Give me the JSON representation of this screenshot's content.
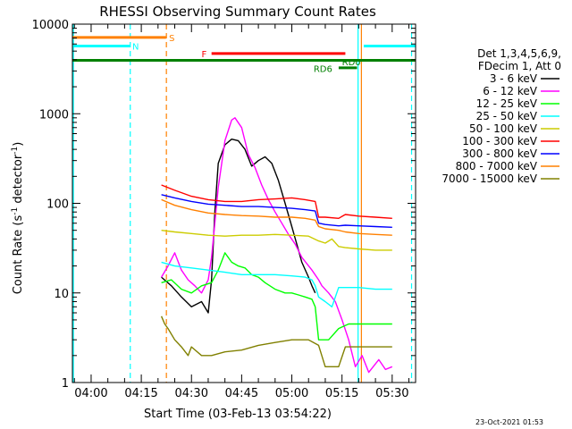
{
  "chart_data": {
    "type": "line",
    "title": "RHESSI Observing Summary Count Rates",
    "ylabel_main": "Count Rate (s",
    "ylabel_sup": "-1",
    "ylabel_mid": " detector",
    "ylabel_sup2": "-1",
    "ylabel_end": ")",
    "xlabel": "Start Time (03-Feb-13 03:54:22)",
    "footer_date": "23-Oct-2021 01:53",
    "y_scale": "log",
    "ylim": [
      1,
      10000
    ],
    "xlim_min": [
      -5.6,
      97
    ],
    "y_ticks": [
      {
        "value": 1,
        "label": "1"
      },
      {
        "value": 10,
        "label": "10"
      },
      {
        "value": 100,
        "label": "100"
      },
      {
        "value": 1000,
        "label": "1000"
      },
      {
        "value": 10000,
        "label": "10000"
      }
    ],
    "x_ticks": [
      {
        "value": 0,
        "label": "04:00"
      },
      {
        "value": 15,
        "label": "04:15"
      },
      {
        "value": 30,
        "label": "04:30"
      },
      {
        "value": 45,
        "label": "04:45"
      },
      {
        "value": 60,
        "label": "05:00"
      },
      {
        "value": 75,
        "label": "05:15"
      },
      {
        "value": 90,
        "label": "05:30"
      }
    ],
    "legend_header": [
      "Det 1,3,4,5,6,9,",
      "FDecim 1, Att 0"
    ],
    "series": [
      {
        "name": "3 - 6 keV",
        "color": "#000000",
        "x": [
          21,
          24,
          27,
          30,
          33,
          35,
          36,
          37,
          38,
          40,
          42,
          44,
          46,
          48,
          50,
          52,
          54,
          56,
          58,
          60,
          62,
          63,
          65,
          66,
          67
        ],
        "y": [
          15,
          12,
          9,
          7,
          8,
          6,
          14,
          80,
          280,
          450,
          520,
          500,
          400,
          260,
          300,
          330,
          280,
          180,
          100,
          55,
          30,
          22,
          15,
          12,
          10
        ]
      },
      {
        "name": "6 - 12 keV",
        "color": "#ff00ff",
        "x": [
          21,
          23,
          25,
          27,
          29,
          31,
          33,
          35,
          36,
          38,
          40,
          42,
          43,
          45,
          47,
          49,
          51,
          53,
          55,
          57,
          59,
          61,
          63,
          66,
          68,
          69,
          71,
          73,
          75,
          77,
          79,
          81,
          83,
          86,
          88,
          90
        ],
        "y": [
          15,
          20,
          28,
          18,
          14,
          12,
          10,
          14,
          25,
          150,
          500,
          850,
          900,
          700,
          350,
          250,
          160,
          110,
          80,
          60,
          45,
          35,
          25,
          18,
          14,
          12,
          10,
          8,
          5,
          3,
          1.5,
          2,
          1.3,
          1.8,
          1.4,
          1.5
        ]
      },
      {
        "name": "12 - 25 keV",
        "color": "#00ff00",
        "x": [
          21,
          24,
          27,
          30,
          33,
          36,
          38,
          40,
          42,
          44,
          46,
          48,
          50,
          52,
          55,
          58,
          60,
          62,
          64,
          66,
          67,
          68,
          71,
          74,
          77,
          80,
          83,
          86,
          90
        ],
        "y": [
          13,
          14,
          11,
          10,
          12,
          13,
          18,
          28,
          22,
          20,
          19,
          16,
          15,
          13,
          11,
          10,
          10,
          9.5,
          9,
          8.5,
          7,
          3,
          3,
          4,
          4.5,
          4.5,
          4.5,
          4.5,
          4.5
        ]
      },
      {
        "name": "25 - 50 keV",
        "color": "#00ffff",
        "x": [
          21,
          25,
          30,
          35,
          40,
          45,
          50,
          55,
          60,
          64,
          66,
          67,
          68,
          70,
          72,
          74,
          76,
          80,
          85,
          90
        ],
        "y": [
          22,
          20,
          19,
          18,
          17,
          16,
          16,
          16,
          15.5,
          15,
          14,
          12,
          9,
          8,
          7,
          11.5,
          11.5,
          11.5,
          11,
          11
        ]
      },
      {
        "name": "50 - 100 keV",
        "color": "#cccc00",
        "x": [
          21,
          25,
          30,
          35,
          40,
          45,
          50,
          55,
          60,
          65,
          68,
          70,
          72,
          74,
          76,
          80,
          85,
          90
        ],
        "y": [
          50,
          48,
          46,
          44,
          43,
          44,
          44,
          45,
          44,
          43,
          38,
          36,
          40,
          33,
          32,
          31,
          30,
          30
        ]
      },
      {
        "name": "100 - 300 keV",
        "color": "#ff0000",
        "x": [
          21,
          25,
          30,
          35,
          40,
          45,
          50,
          55,
          60,
          64,
          67,
          68,
          70,
          74,
          76,
          80,
          85,
          90
        ],
        "y": [
          160,
          140,
          120,
          110,
          105,
          105,
          110,
          112,
          115,
          110,
          105,
          70,
          70,
          68,
          75,
          72,
          70,
          68
        ]
      },
      {
        "name": "300 - 800 keV",
        "color": "#0000ff",
        "x": [
          21,
          25,
          30,
          35,
          40,
          45,
          50,
          55,
          60,
          64,
          67,
          68,
          70,
          74,
          76,
          80,
          85,
          90
        ],
        "y": [
          125,
          115,
          105,
          98,
          95,
          92,
          92,
          90,
          88,
          85,
          82,
          60,
          58,
          56,
          57,
          56,
          55,
          54
        ]
      },
      {
        "name": "800 - 7000 keV",
        "color": "#ff8000",
        "x": [
          21,
          25,
          30,
          35,
          40,
          45,
          50,
          55,
          60,
          64,
          67,
          68,
          70,
          74,
          76,
          80,
          85,
          90
        ],
        "y": [
          110,
          95,
          85,
          78,
          75,
          73,
          72,
          70,
          70,
          68,
          65,
          55,
          52,
          50,
          48,
          46,
          45,
          44
        ]
      },
      {
        "name": "7000 - 15000 keV",
        "color": "#808000",
        "x": [
          21,
          22,
          23,
          25,
          27,
          29,
          30,
          33,
          36,
          40,
          45,
          50,
          55,
          60,
          65,
          68,
          70,
          74,
          76,
          80,
          85,
          90
        ],
        "y": [
          5.5,
          4.5,
          4,
          3,
          2.5,
          2,
          2.5,
          2,
          2,
          2.2,
          2.3,
          2.6,
          2.8,
          3,
          3,
          2.6,
          1.5,
          1.5,
          2.5,
          2.5,
          2.5,
          2.5
        ]
      }
    ],
    "state_bars": [
      {
        "label": "S",
        "color": "#ff8000",
        "x0": -5.6,
        "x1": 22.4,
        "y": 7100,
        "label_x": 23.3,
        "label_y": 7100
      },
      {
        "label": "N",
        "color": "#00ffff",
        "x0": -5.6,
        "x1": 11.6,
        "y": 5700,
        "label_x": 12.3,
        "label_y": 5700
      },
      {
        "label": "N",
        "color": "#00ffff",
        "x0": 81.5,
        "x1": 97,
        "y": 5700,
        "label_x": null,
        "label_y": null
      },
      {
        "label": "F",
        "color": "#ff0000",
        "x0": 36,
        "x1": 76,
        "y": 4700,
        "label_x": 33,
        "label_y": 4700
      },
      {
        "label": "RD0",
        "color": "#008000",
        "x0": -5.6,
        "x1": 97,
        "y": 3950,
        "label_x": 75,
        "label_y": 3800
      },
      {
        "label": "RD6",
        "color": "#008000",
        "x0": 74,
        "x1": 79.5,
        "y": 3250,
        "label_x": 66.5,
        "label_y": 3200
      }
    ],
    "markers": [
      {
        "x": -5.3,
        "color": "#00ffff",
        "style": "solid"
      },
      {
        "x": 11.7,
        "color": "#00ffff",
        "style": "dashed"
      },
      {
        "x": 22.5,
        "color": "#ff8000",
        "style": "dashed"
      },
      {
        "x": 79.8,
        "color": "#00ffff",
        "style": "solid"
      },
      {
        "x": 80.8,
        "color": "#ff8000",
        "style": "solid"
      },
      {
        "x": 95.8,
        "color": "#00ffff",
        "style": "dashed"
      }
    ]
  }
}
